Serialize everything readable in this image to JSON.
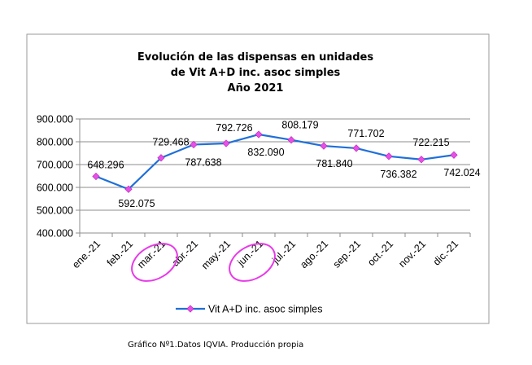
{
  "chart_data": {
    "type": "line",
    "title": [
      "Evolución de las dispensas en unidades",
      "de Vit A+D inc. asoc  simples",
      "Año 2021"
    ],
    "categories": [
      "ene.-21",
      "feb.-21",
      "mar.-21",
      "abr.-21",
      "may.-21",
      "jun.-21",
      "jul.-21",
      "ago.-21",
      "sep.-21",
      "oct.-21",
      "nov.-21",
      "dic.-21"
    ],
    "series": [
      {
        "name": "Vit A+D inc. asoc  simples",
        "values": [
          648296,
          592075,
          729468,
          787638,
          792726,
          832090,
          808179,
          781840,
          771702,
          736382,
          722215,
          742024
        ],
        "labels": [
          "648.296",
          "592.075",
          "729.468",
          "787.638",
          "792.726",
          "832.090",
          "808.179",
          "781.840",
          "771.702",
          "736.382",
          "722.215",
          "742.024"
        ],
        "line_color": "#1f6fd9",
        "marker_color": "#e84fe8"
      }
    ],
    "y_ticks": [
      400000,
      500000,
      600000,
      700000,
      800000,
      900000
    ],
    "y_tick_labels": [
      "400.000",
      "500.000",
      "600.000",
      "700.000",
      "800.000",
      "900.000"
    ],
    "ylim": [
      400000,
      900000
    ],
    "xlabel": "",
    "ylabel": "",
    "grid": true,
    "legend": "bottom",
    "highlighted_categories": [
      "mar.-21",
      "jun.-21"
    ],
    "highlight_color": "#e83ae8"
  },
  "caption": "Gráfico Nº1.Datos IQVIA. Producción propia"
}
